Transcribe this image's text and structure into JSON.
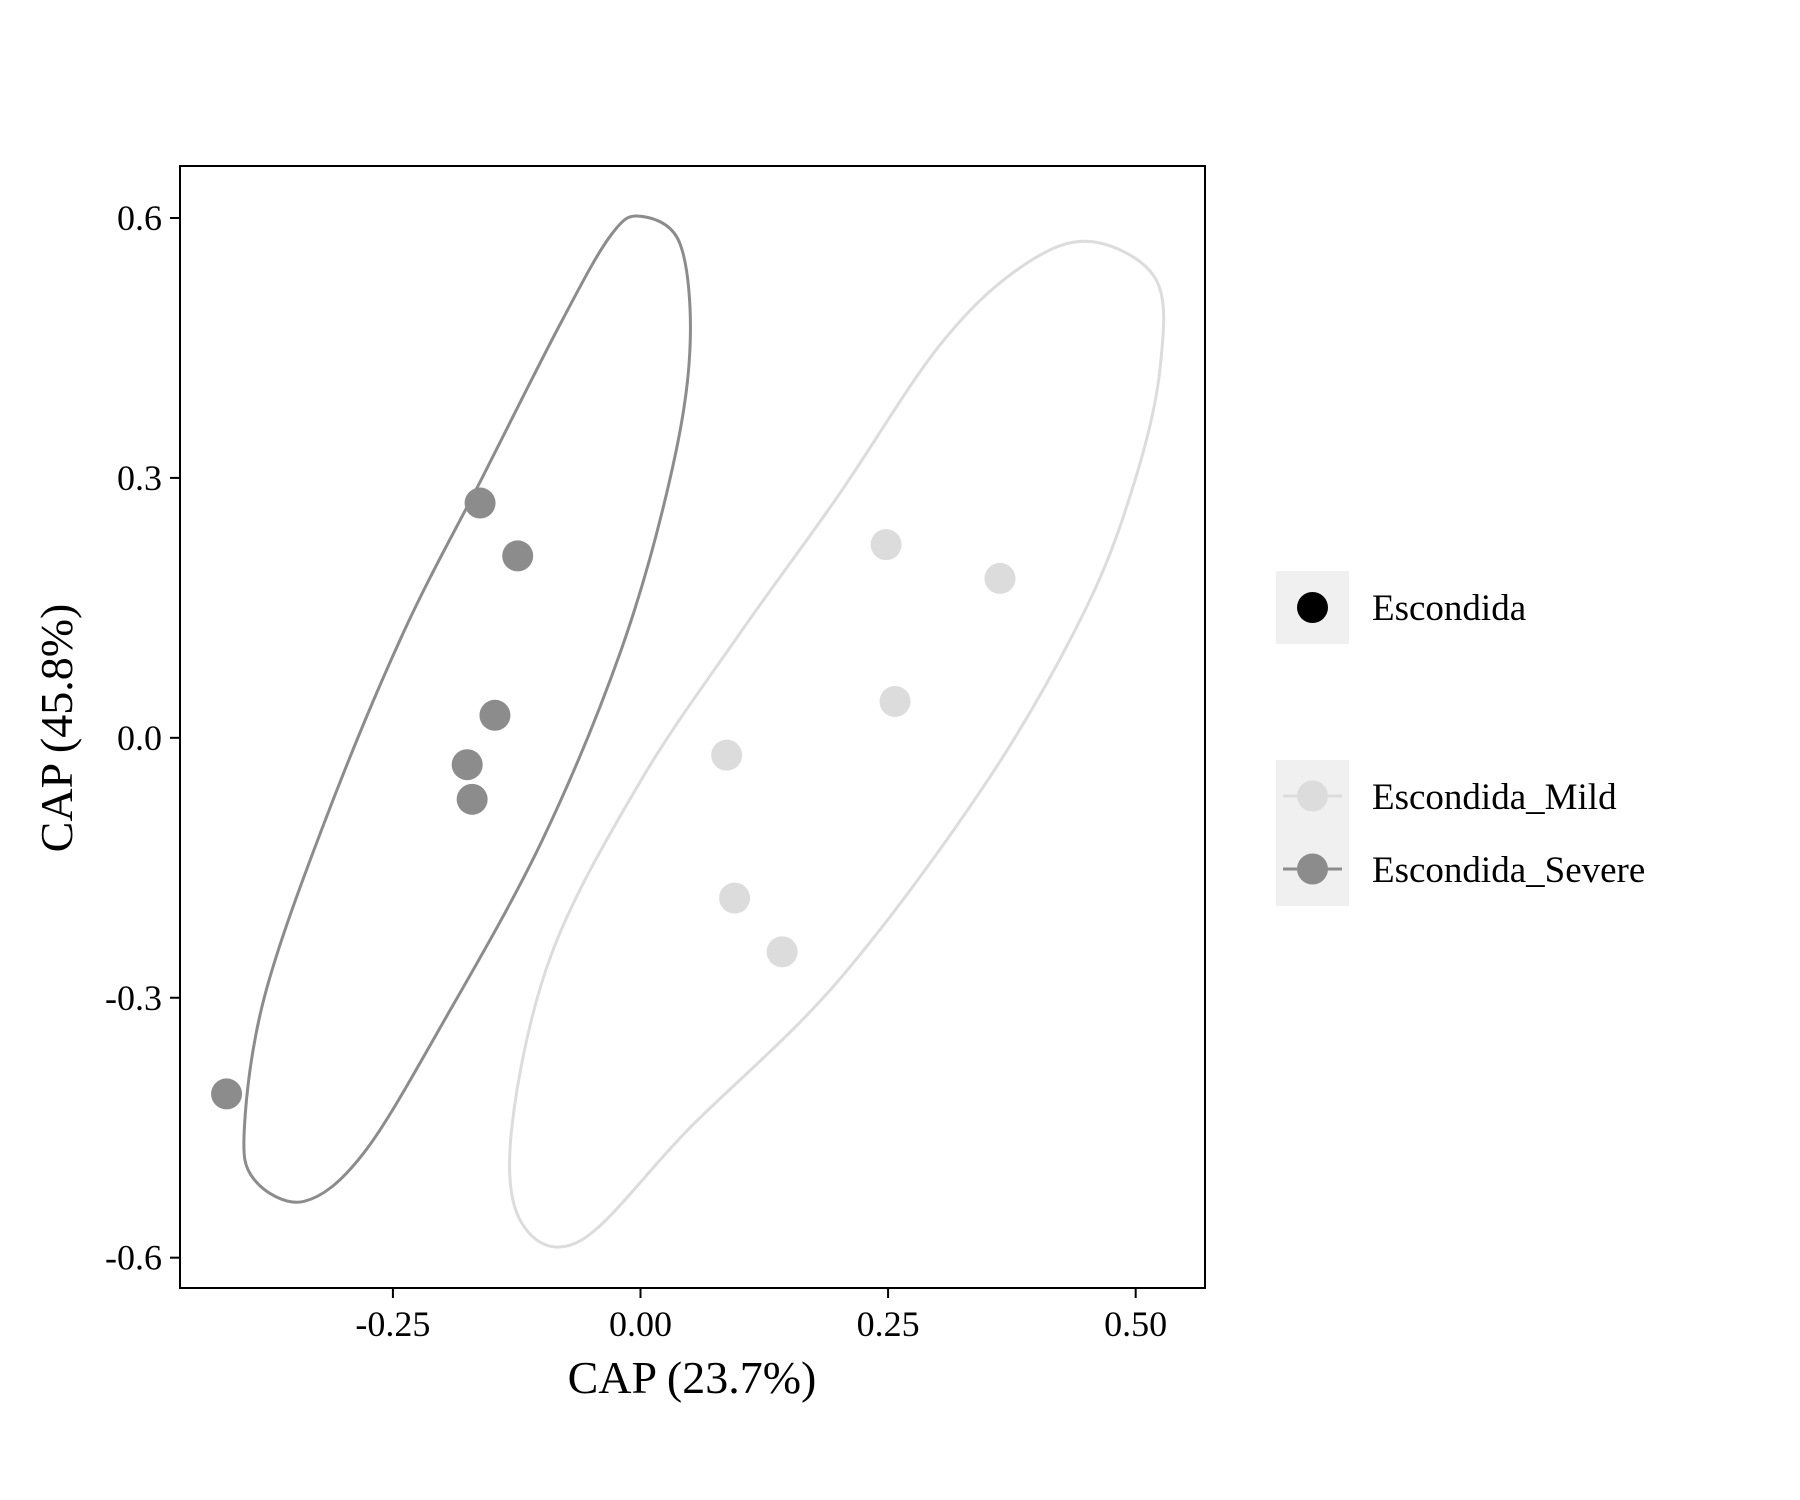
{
  "chart_data": {
    "type": "scatter",
    "xlabel": "CAP (23.7%)",
    "ylabel": "CAP (45.8%)",
    "xlim": [
      -0.465,
      0.57
    ],
    "ylim": [
      -0.635,
      0.66
    ],
    "x_ticks": [
      -0.25,
      0.0,
      0.25,
      0.5
    ],
    "x_tick_labels": [
      "-0.25",
      "0.00",
      "0.25",
      "0.50"
    ],
    "y_ticks": [
      -0.6,
      -0.3,
      0.0,
      0.3,
      0.6
    ],
    "y_tick_labels": [
      "-0.6",
      "-0.3",
      "0.0",
      "0.3",
      "0.6"
    ],
    "grid": false,
    "legend_position": "right",
    "legend": [
      {
        "title_entry": "Escondida",
        "color": "#000000"
      },
      {
        "entries": [
          {
            "label": "Escondida_Mild",
            "color": "#dcdcdc"
          },
          {
            "label": "Escondida_Severe",
            "color": "#8c8c8c"
          }
        ]
      }
    ],
    "series": [
      {
        "name": "Escondida_Mild",
        "color": "#dcdcdc",
        "points": [
          {
            "x": 0.248,
            "y": 0.223
          },
          {
            "x": 0.363,
            "y": 0.184
          },
          {
            "x": 0.257,
            "y": 0.042
          },
          {
            "x": 0.087,
            "y": -0.02
          },
          {
            "x": 0.095,
            "y": -0.185
          },
          {
            "x": 0.143,
            "y": -0.247
          }
        ],
        "ellipse": [
          [
            0.452,
            0.573
          ],
          [
            0.52,
            0.53
          ],
          [
            0.525,
            0.43
          ],
          [
            0.5,
            0.3
          ],
          [
            0.45,
            0.15
          ],
          [
            0.35,
            -0.05
          ],
          [
            0.2,
            -0.28
          ],
          [
            0.05,
            -0.45
          ],
          [
            -0.06,
            -0.58
          ],
          [
            -0.12,
            -0.56
          ],
          [
            -0.13,
            -0.45
          ],
          [
            -0.09,
            -0.25
          ],
          [
            0.0,
            -0.05
          ],
          [
            0.1,
            0.12
          ],
          [
            0.2,
            0.28
          ],
          [
            0.3,
            0.45
          ],
          [
            0.38,
            0.54
          ],
          [
            0.452,
            0.573
          ]
        ]
      },
      {
        "name": "Escondida_Severe",
        "color": "#8c8c8c",
        "points": [
          {
            "x": -0.162,
            "y": 0.271
          },
          {
            "x": -0.124,
            "y": 0.21
          },
          {
            "x": -0.147,
            "y": 0.026
          },
          {
            "x": -0.175,
            "y": -0.031
          },
          {
            "x": -0.17,
            "y": -0.071
          },
          {
            "x": -0.418,
            "y": -0.411
          }
        ],
        "ellipse": [
          [
            0.0,
            0.602
          ],
          [
            0.04,
            0.57
          ],
          [
            0.05,
            0.45
          ],
          [
            0.03,
            0.3
          ],
          [
            -0.02,
            0.1
          ],
          [
            -0.1,
            -0.12
          ],
          [
            -0.2,
            -0.33
          ],
          [
            -0.28,
            -0.48
          ],
          [
            -0.34,
            -0.535
          ],
          [
            -0.39,
            -0.51
          ],
          [
            -0.4,
            -0.45
          ],
          [
            -0.38,
            -0.3
          ],
          [
            -0.32,
            -0.1
          ],
          [
            -0.24,
            0.12
          ],
          [
            -0.16,
            0.3
          ],
          [
            -0.08,
            0.48
          ],
          [
            -0.03,
            0.58
          ],
          [
            0.0,
            0.602
          ]
        ]
      }
    ]
  }
}
